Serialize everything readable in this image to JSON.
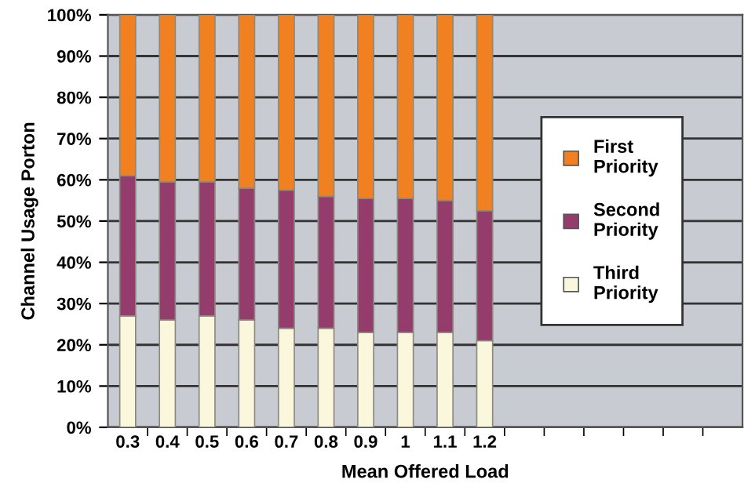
{
  "chart_data": {
    "type": "bar",
    "stacked": true,
    "xlabel": "Mean Offered Load",
    "ylabel": "Channel Usage Porton",
    "categories": [
      "0.3",
      "0.4",
      "0.5",
      "0.6",
      "0.7",
      "0.8",
      "0.9",
      "1",
      "1.1",
      "1.2",
      null,
      null,
      null,
      null,
      null,
      null
    ],
    "series": [
      {
        "name": "Third Priority",
        "color": "#fbf7dc",
        "values": [
          27,
          26,
          27,
          26,
          24,
          24,
          23,
          23,
          23,
          21,
          null,
          null,
          null,
          null,
          null,
          null
        ]
      },
      {
        "name": "Second Priority",
        "color": "#943d6c",
        "values": [
          34,
          33.5,
          32.5,
          32,
          33.5,
          32,
          32.5,
          32.5,
          32,
          31.5,
          null,
          null,
          null,
          null,
          null,
          null
        ]
      },
      {
        "name": "First Priority",
        "color": "#f08020",
        "values": [
          39,
          40.5,
          40.5,
          42,
          42.5,
          44,
          44.5,
          44.5,
          45,
          47.5,
          null,
          null,
          null,
          null,
          null,
          null
        ]
      }
    ],
    "ylim": [
      0,
      100
    ],
    "yticks": [
      {
        "value": 0,
        "label": "0%"
      },
      {
        "value": 10,
        "label": "10%"
      },
      {
        "value": 20,
        "label": "20%"
      },
      {
        "value": 30,
        "label": "30%"
      },
      {
        "value": 40,
        "label": "40%"
      },
      {
        "value": 50,
        "label": "50%"
      },
      {
        "value": 60,
        "label": "60%"
      },
      {
        "value": 70,
        "label": "70%"
      },
      {
        "value": 80,
        "label": "80%"
      },
      {
        "value": 90,
        "label": "90%"
      },
      {
        "value": 100,
        "label": "100%"
      }
    ],
    "grid": "y",
    "legend": "right"
  }
}
